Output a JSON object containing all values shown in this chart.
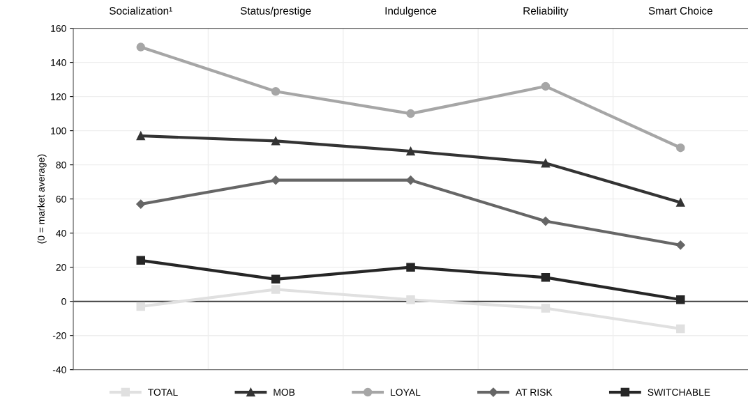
{
  "chart_data": {
    "type": "line",
    "categories": [
      "Socialization¹",
      "Status/prestige",
      "Indulgence",
      "Reliability",
      "Smart Choice"
    ],
    "ylabel": "(0 = market average)",
    "ylim": [
      -40,
      160
    ],
    "yticks": [
      -40,
      -20,
      0,
      20,
      40,
      60,
      80,
      100,
      120,
      140,
      160
    ],
    "grid": true,
    "legend": "bottom",
    "line_style": "solid",
    "ref_lines": [
      {
        "axis": "y",
        "value": 0,
        "color": "#404040"
      }
    ],
    "series": [
      {
        "name": "TOTAL",
        "color": "#e0e0e0",
        "marker": "square",
        "values": [
          -3,
          7,
          1,
          -4,
          -16
        ]
      },
      {
        "name": "MOB",
        "color": "#333333",
        "marker": "triangle",
        "values": [
          97,
          94,
          88,
          81,
          58
        ]
      },
      {
        "name": "LOYAL",
        "color": "#a6a6a6",
        "marker": "circle",
        "values": [
          149,
          123,
          110,
          126,
          90
        ]
      },
      {
        "name": "AT RISK",
        "color": "#666666",
        "marker": "diamond",
        "values": [
          57,
          71,
          71,
          47,
          33
        ]
      },
      {
        "name": "SWITCHABLE",
        "color": "#262626",
        "marker": "square",
        "values": [
          24,
          13,
          20,
          14,
          1
        ]
      }
    ]
  }
}
